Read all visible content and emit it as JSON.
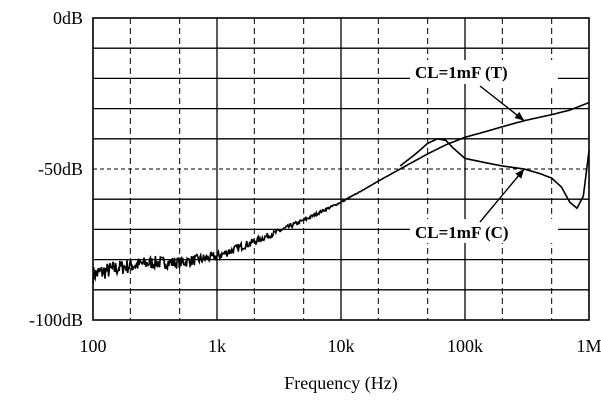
{
  "chart_data": {
    "type": "line",
    "x_scale": "log",
    "xlim": [
      100,
      1000000
    ],
    "ylim": [
      -100,
      0
    ],
    "xlabel": "Frequency (Hz)",
    "ylabel": "",
    "x_ticks": [
      {
        "value": 100,
        "label": "100"
      },
      {
        "value": 1000,
        "label": "1k"
      },
      {
        "value": 10000,
        "label": "10k"
      },
      {
        "value": 100000,
        "label": "100k"
      },
      {
        "value": 1000000,
        "label": "1M"
      }
    ],
    "y_ticks": [
      {
        "value": 0,
        "label": "0dB"
      },
      {
        "value": -50,
        "label": "-50dB"
      },
      {
        "value": -100,
        "label": "-100dB"
      }
    ],
    "grid": true,
    "series": [
      {
        "name": "CL=1mF (T)",
        "x": [
          100,
          150,
          200,
          300,
          500,
          700,
          1000,
          1500,
          2000,
          3000,
          5000,
          7000,
          10000,
          15000,
          20000,
          30000,
          50000,
          70000,
          100000,
          150000,
          200000,
          300000,
          500000,
          700000,
          1000000
        ],
        "y": [
          -85,
          -83,
          -82,
          -81,
          -81,
          -80,
          -79,
          -76,
          -74,
          -71,
          -67,
          -64,
          -61,
          -57,
          -54,
          -50,
          -45,
          -42,
          -39.5,
          -37.5,
          -36,
          -34,
          -32,
          -30.5,
          -28
        ]
      },
      {
        "name": "CL=1mF (C)",
        "x": [
          30000,
          40000,
          50000,
          60000,
          70000,
          80000,
          100000,
          150000,
          200000,
          300000,
          400000,
          500000,
          600000,
          700000,
          800000,
          900000,
          1000000
        ],
        "y": [
          -49,
          -45,
          -41.5,
          -40,
          -40.5,
          -43,
          -46.5,
          -48,
          -49,
          -50,
          -51.5,
          -53,
          -56,
          -61,
          -63,
          -59,
          -44
        ]
      }
    ],
    "annotations": [
      {
        "text": "CL=1mF (T)",
        "target_series": "CL=1mF (T)"
      },
      {
        "text": "CL=1mF (C)",
        "target_series": "CL=1mF (C)"
      }
    ]
  }
}
